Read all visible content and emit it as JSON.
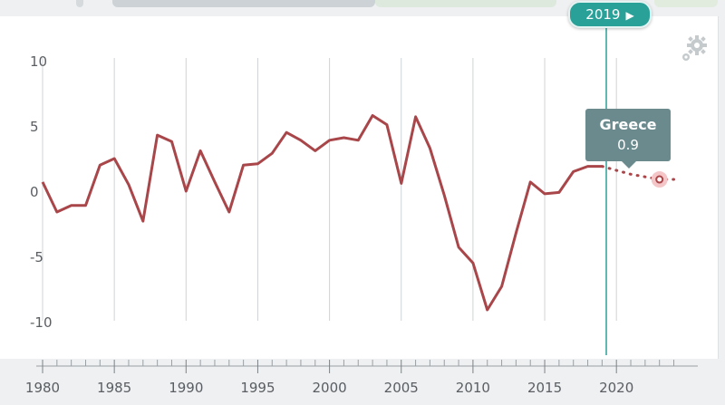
{
  "timeline": {
    "selected_year_label": "2019",
    "play_icon": "play-triangle-icon"
  },
  "tooltip": {
    "country": "Greece",
    "value": "0.9"
  },
  "colors": {
    "series": "#a8464a",
    "accent": "#2aa198",
    "tooltip_bg": "#6a8a8e",
    "grid": "#cfd3d6"
  },
  "chart_data": {
    "type": "line",
    "title": "",
    "xlabel": "",
    "ylabel": "",
    "grid": "vertical",
    "ylim": [
      -10,
      10
    ],
    "y_ticks": [
      "10",
      "5",
      "0",
      "-5",
      "-10"
    ],
    "x_ticks": [
      "1980",
      "1985",
      "1990",
      "1995",
      "2000",
      "2005",
      "2010",
      "2015",
      "2020"
    ],
    "series": [
      {
        "x": [
          1980,
          1981,
          1982,
          1983,
          1984,
          1985,
          1986,
          1987,
          1988,
          1989,
          1990,
          1991,
          1992,
          1993,
          1994,
          1995,
          1996,
          1997,
          1998,
          1999,
          2000,
          2001,
          2002,
          2003,
          2004,
          2005,
          2006,
          2007,
          2008,
          2009,
          2010,
          2011,
          2012,
          2013,
          2014,
          2015,
          2016,
          2017,
          2018,
          2019
        ],
        "values": [
          0.7,
          -1.6,
          -1.1,
          -1.1,
          2.0,
          2.5,
          0.5,
          -2.3,
          4.3,
          3.8,
          0.0,
          3.1,
          0.7,
          -1.6,
          2.0,
          2.1,
          2.9,
          4.5,
          3.9,
          3.1,
          3.9,
          4.1,
          3.9,
          5.8,
          5.1,
          0.6,
          5.7,
          3.3,
          -0.3,
          -4.3,
          -5.5,
          -9.1,
          -7.3,
          -3.2,
          0.7,
          -0.2,
          -0.1,
          1.5,
          1.9,
          1.9
        ]
      },
      {
        "x": [
          2019,
          2020,
          2021,
          2022,
          2023,
          2024
        ],
        "values": [
          1.9,
          1.6,
          1.3,
          1.1,
          0.9,
          0.9
        ],
        "style": "dotted"
      }
    ],
    "highlight": {
      "x": 2023,
      "value": 0.9
    }
  }
}
